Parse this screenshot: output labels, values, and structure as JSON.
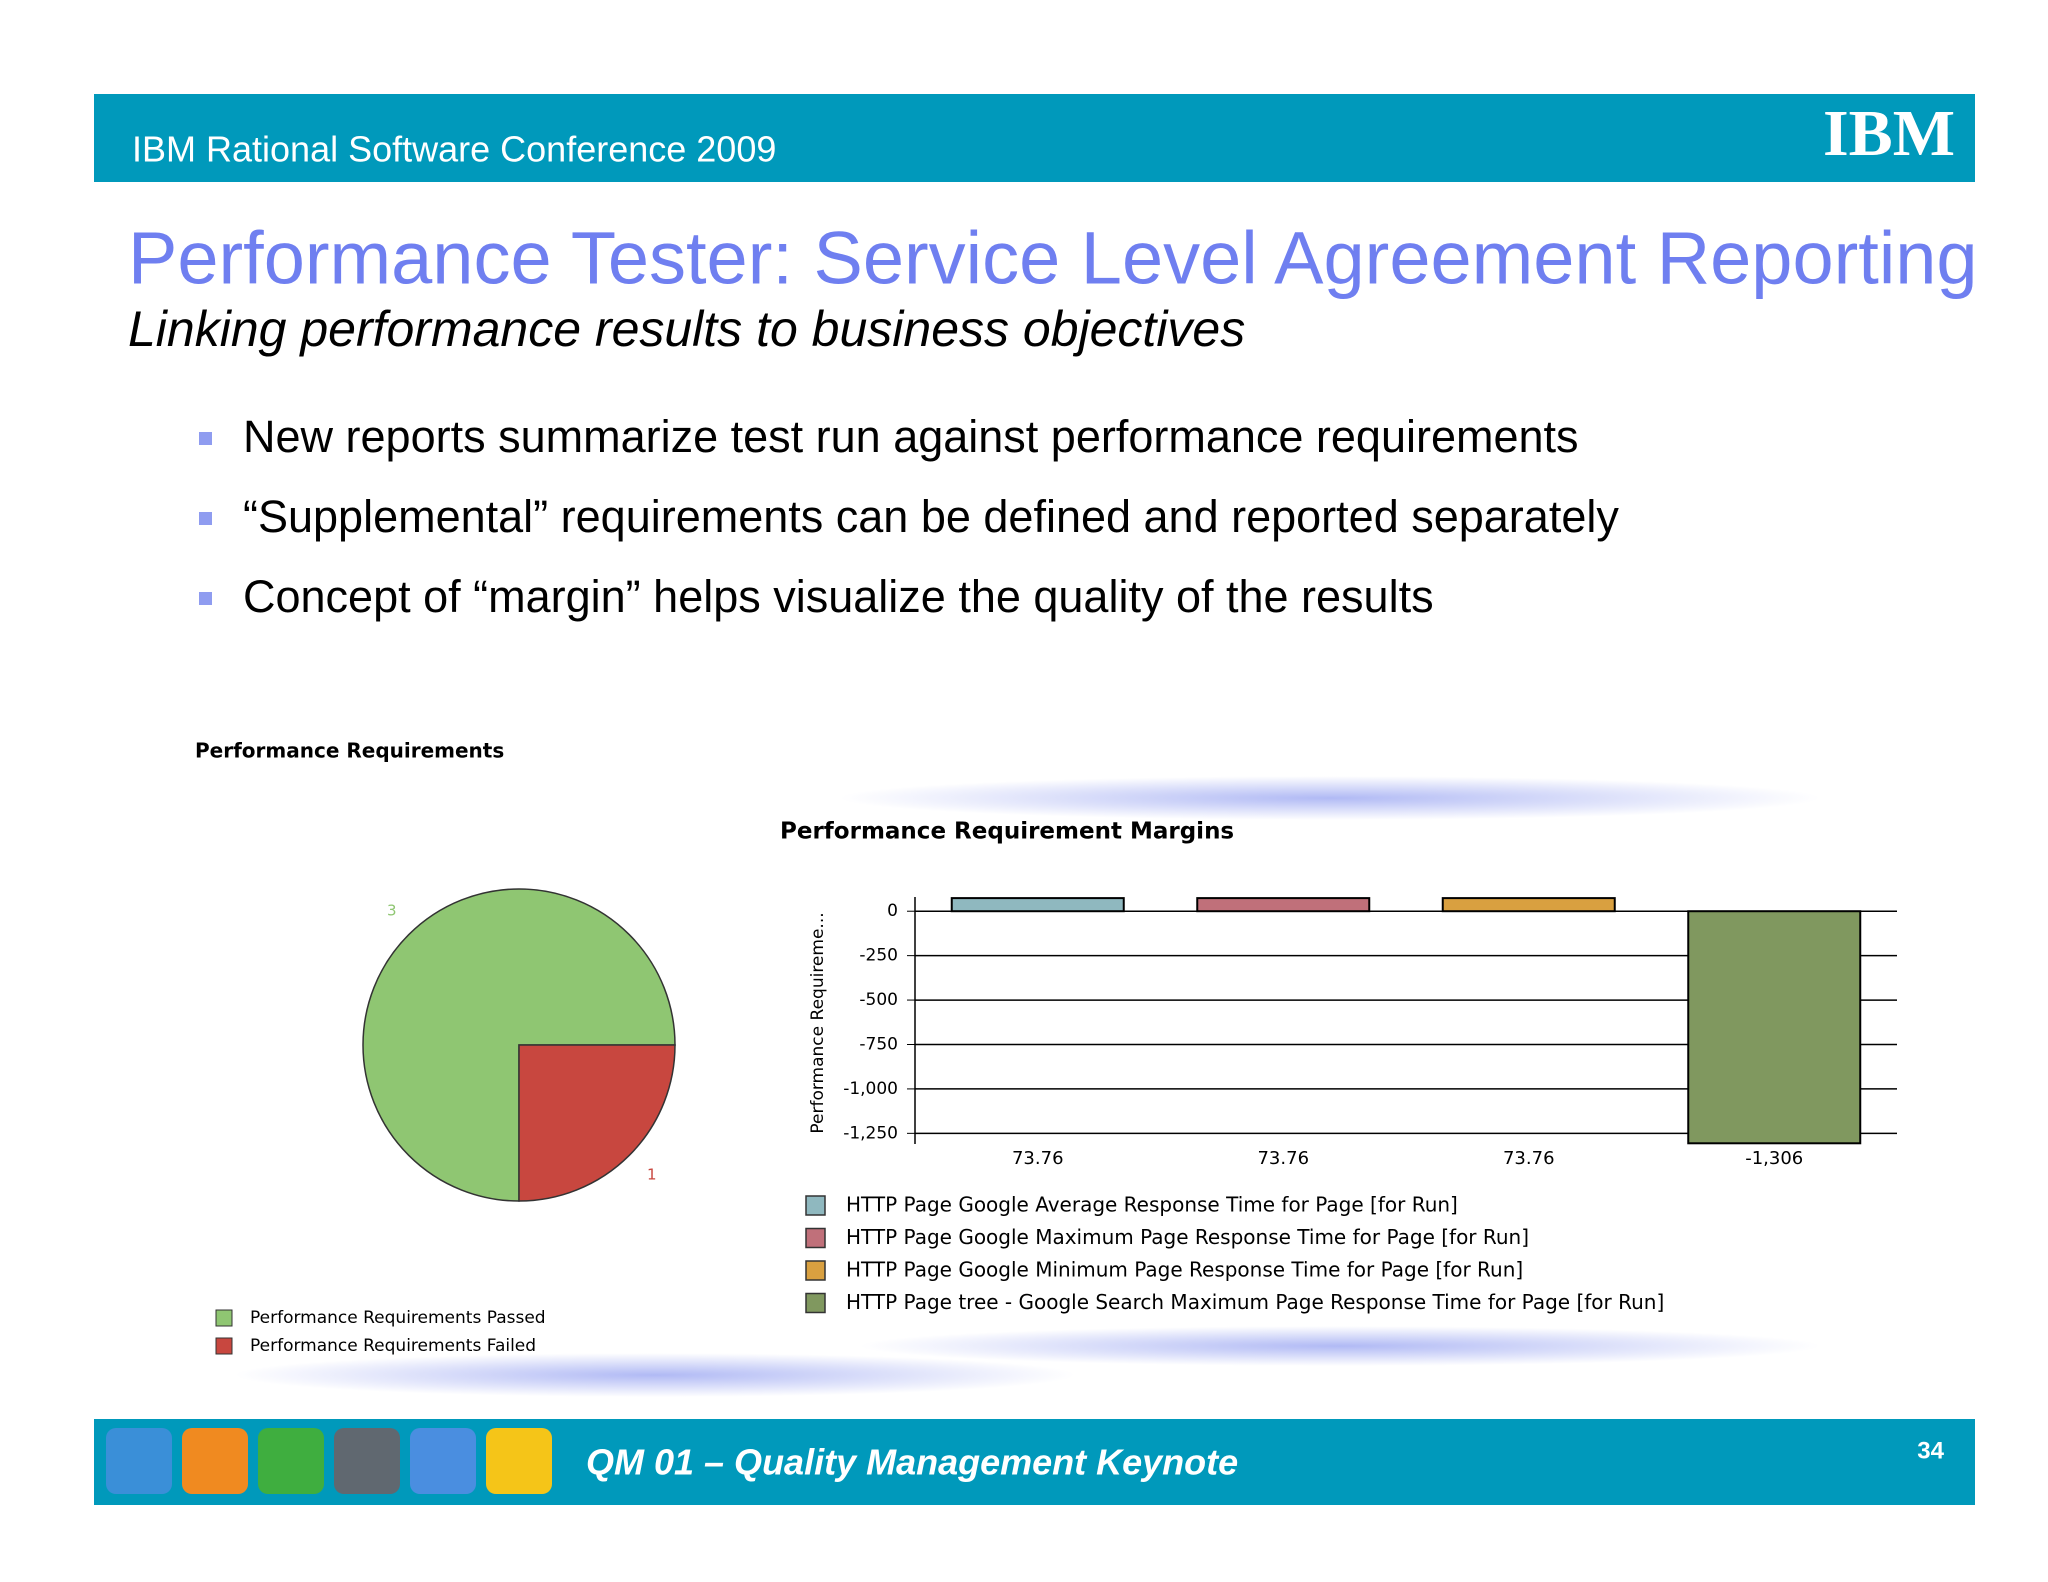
{
  "header": {
    "conference": "IBM Rational Software Conference 2009",
    "logo": "IBM"
  },
  "title": "Performance Tester: Service Level Agreement Reporting",
  "subtitle": "Linking performance results to business objectives",
  "bullets": [
    "New reports summarize test run against performance requirements",
    "“Supplemental” requirements can be defined and reported separately",
    "Concept of “margin” helps visualize the quality of the results"
  ],
  "chart_data": [
    {
      "type": "pie",
      "title": "Performance Requirements",
      "categories": [
        "Performance Requirements Passed",
        "Performance Requirements Failed"
      ],
      "values": [
        3,
        1
      ],
      "colors": [
        "#8fc672",
        "#c8473f"
      ]
    },
    {
      "type": "bar",
      "title": "Performance Requirement Margins",
      "y_label": "Performance Requireme...",
      "series": [
        {
          "name": "HTTP Page Google Average Response Time for Page [for Run]",
          "color": "#8fb8bf",
          "values": [
            73.76
          ],
          "value_labels": [
            "73.76"
          ]
        },
        {
          "name": "HTTP Page Google Maximum Page Response Time for Page [for Run]",
          "color": "#c0707a",
          "values": [
            73.76
          ],
          "value_labels": [
            "73.76"
          ]
        },
        {
          "name": "HTTP Page Google Minimum Page Response Time for Page [for Run]",
          "color": "#d9a040",
          "values": [
            73.76
          ],
          "value_labels": [
            "73.76"
          ]
        },
        {
          "name": "HTTP Page tree - Google Search Maximum Page Response Time for Page [for Run]",
          "color": "#80985f",
          "values": [
            -1306
          ],
          "value_labels": [
            "-1,306"
          ]
        }
      ],
      "ylim": [
        -1310,
        80
      ],
      "yticks": [
        0,
        -250,
        -500,
        -750,
        {
          "value": -1000,
          "label": "-1,000"
        },
        {
          "value": -1250,
          "label": "-1,250"
        }
      ],
      "grid": true
    }
  ],
  "footer": {
    "text": "QM 01 – Quality Management Keynote",
    "page": "34"
  }
}
